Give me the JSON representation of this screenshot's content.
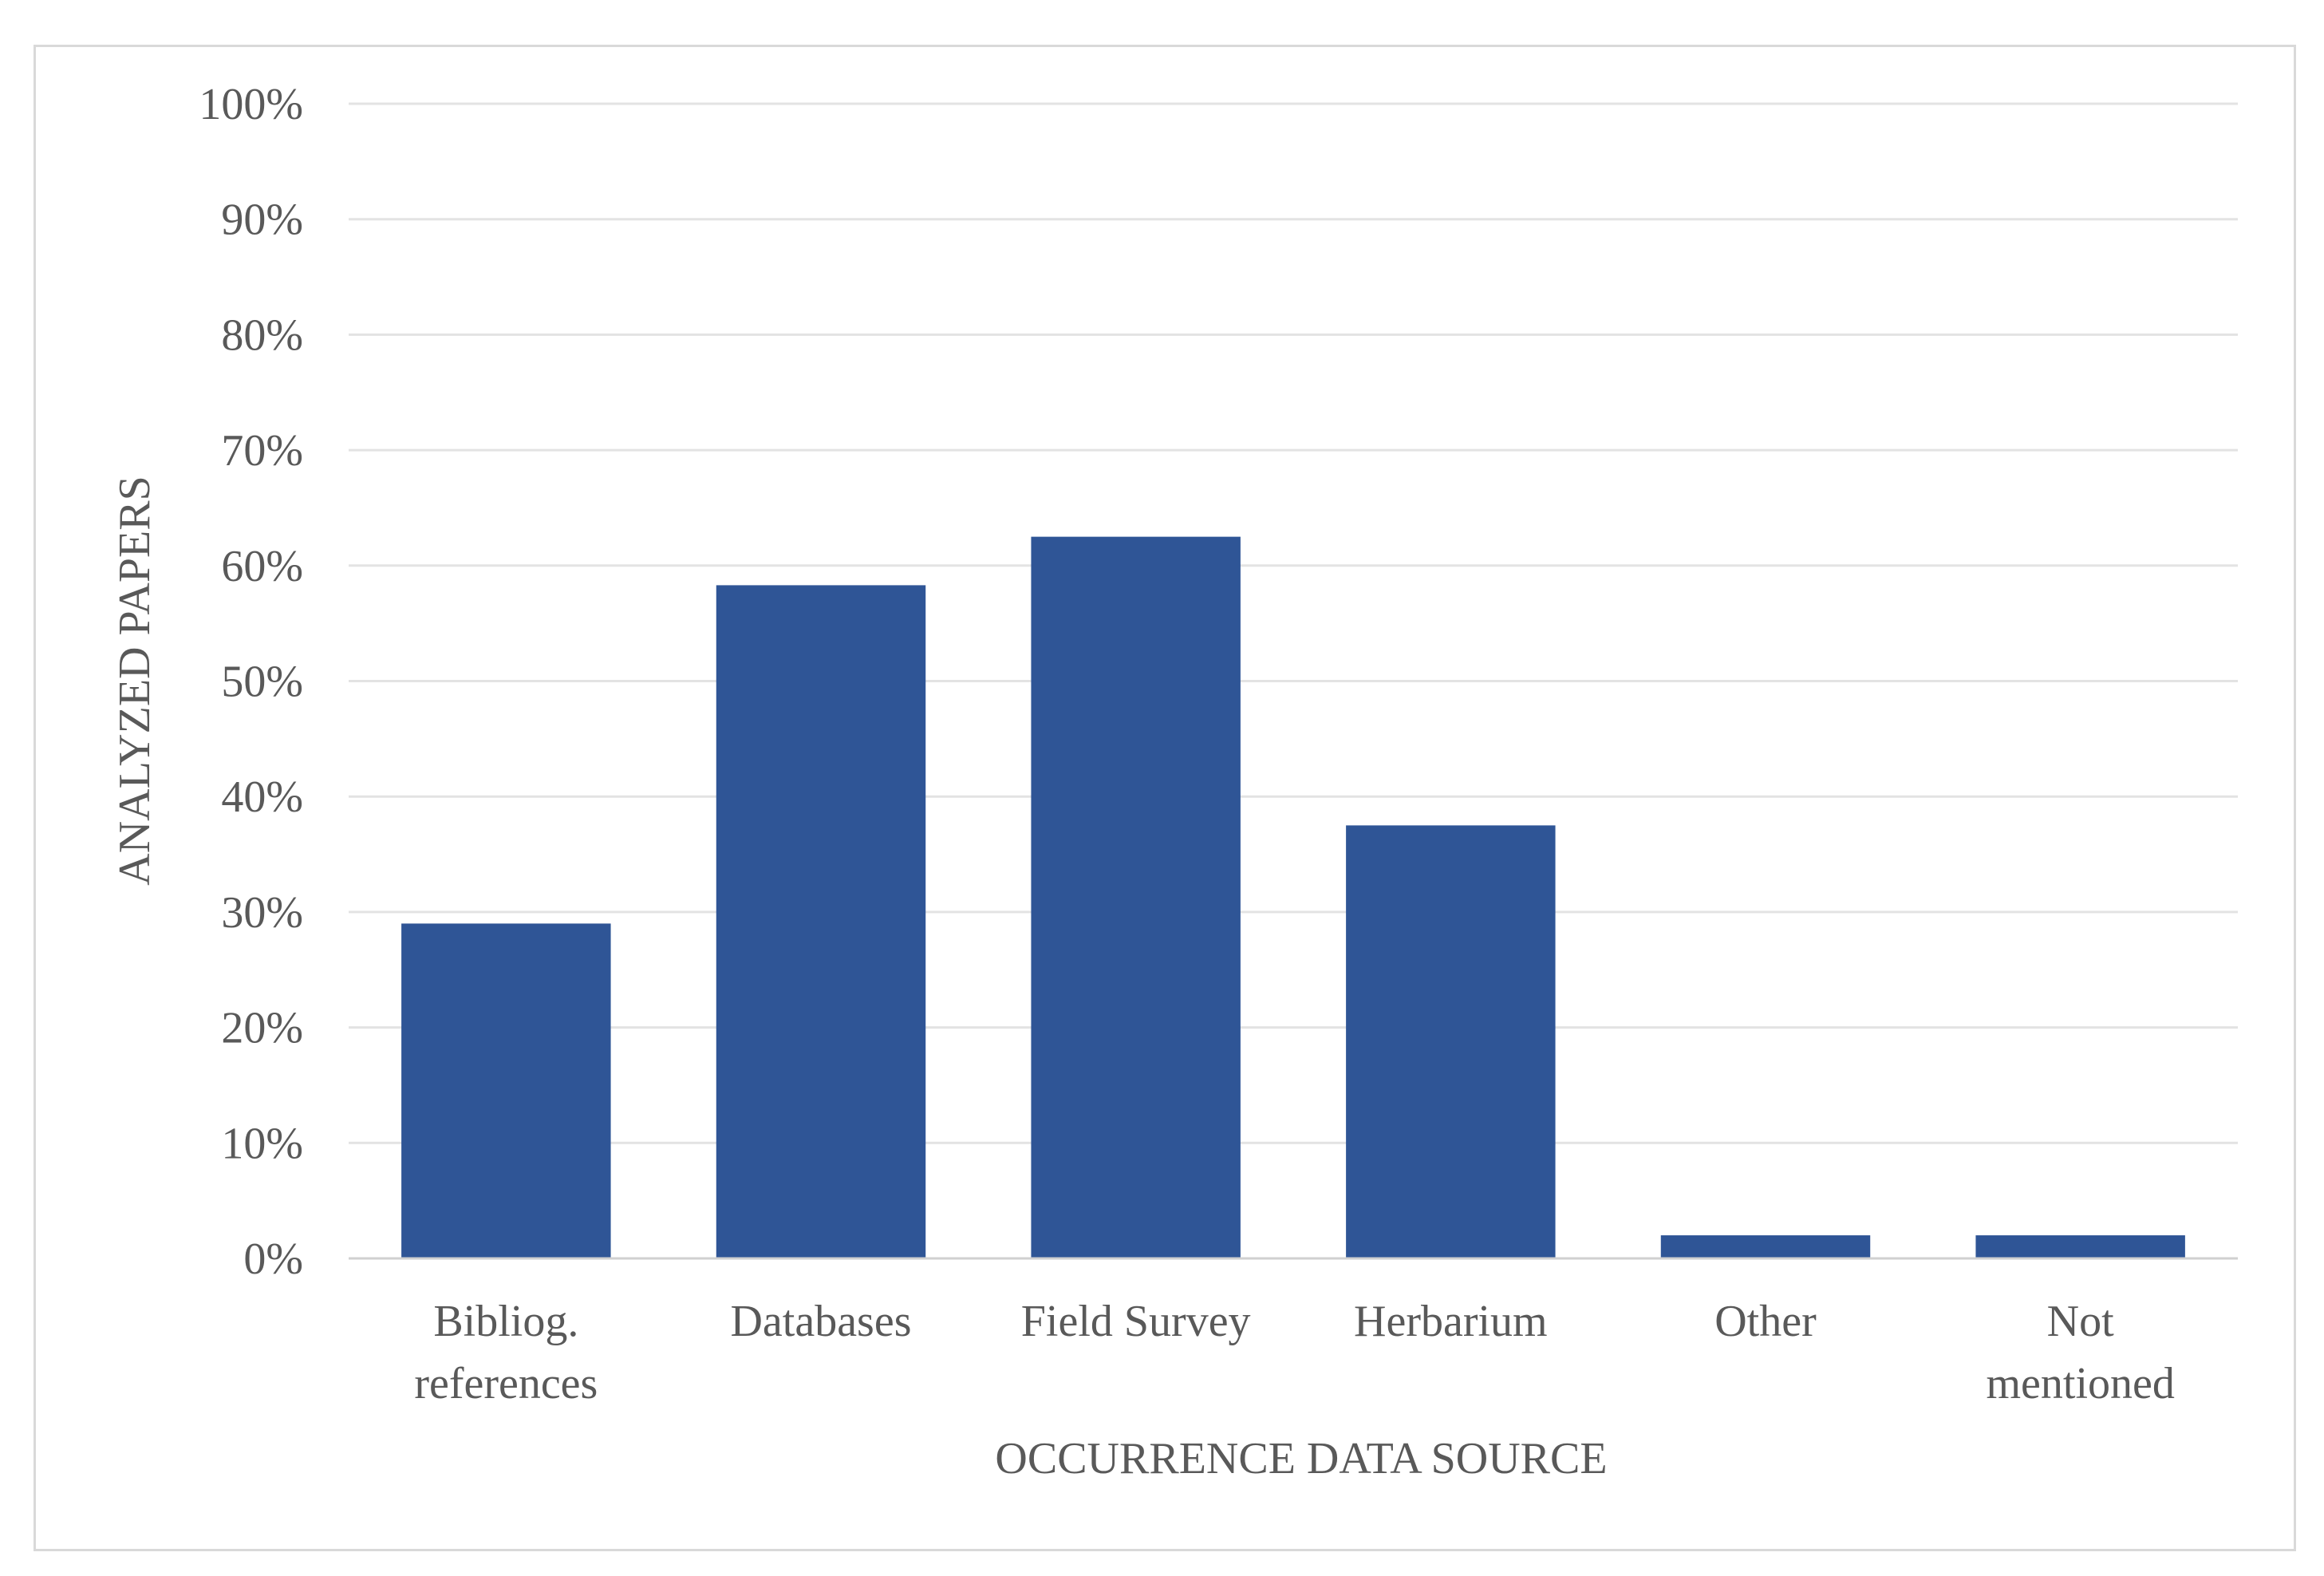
{
  "chart_data": {
    "type": "bar",
    "categories": [
      [
        "Bibliog.",
        "references"
      ],
      [
        "Databases"
      ],
      [
        "Field Survey"
      ],
      [
        "Herbarium"
      ],
      [
        "Other"
      ],
      [
        "Not",
        "mentioned"
      ]
    ],
    "values": [
      29,
      58.3,
      62.5,
      37.5,
      2,
      2
    ],
    "ylim": [
      0,
      100
    ],
    "yticks": [
      0,
      10,
      20,
      30,
      40,
      50,
      60,
      70,
      80,
      90,
      100
    ],
    "ytick_labels": [
      "0%",
      "10%",
      "20%",
      "30%",
      "40%",
      "50%",
      "60%",
      "70%",
      "80%",
      "90%",
      "100%"
    ],
    "xlabel": "OCCURRENCE DATA SOURCE",
    "ylabel": "ANALYZED PAPERS",
    "title": "",
    "grid": true,
    "legend": "none",
    "colors": {
      "bar": "#2f5596",
      "grid": "#e3e3e3",
      "axis": "#d0d0d0",
      "text": "#595959"
    }
  }
}
